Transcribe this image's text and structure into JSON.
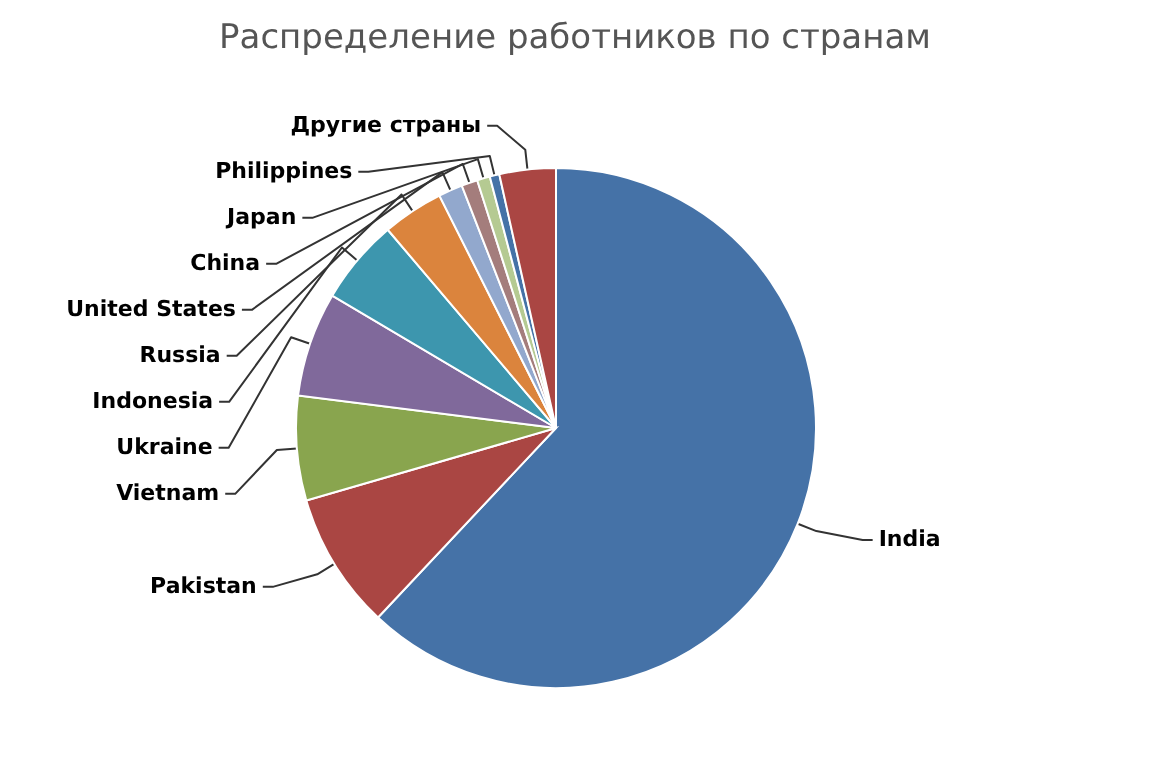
{
  "chart_data": {
    "type": "pie",
    "title": "Распределение работников по странам",
    "categories": [
      "India",
      "Pakistan",
      "Vietnam",
      "Ukraine",
      "Indonesia",
      "Russia",
      "United States",
      "China",
      "Japan",
      "Philippines",
      "Другие страны"
    ],
    "values": [
      62,
      8.5,
      6.5,
      6.5,
      5.3,
      3.8,
      1.5,
      1,
      0.8,
      0.6,
      3.5
    ],
    "colors": [
      "#4572a7",
      "#aa4643",
      "#89a54e",
      "#80699b",
      "#3d96ae",
      "#db843d",
      "#92a8cd",
      "#a47d7c",
      "#b5ca92",
      "#4572a7",
      "#aa4643"
    ]
  }
}
